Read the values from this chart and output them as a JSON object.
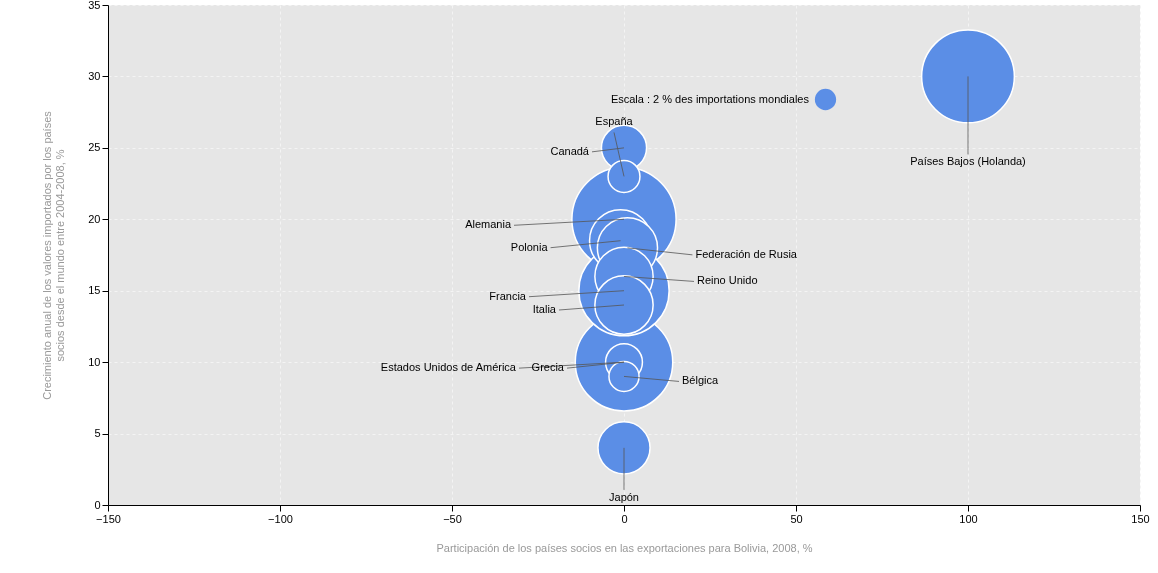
{
  "chart_data": {
    "type": "bubble",
    "xlabel": "Participación de los países socios en las exportaciones para Bolivia, 2008, %",
    "ylabel": "Crecimiento anual de los valores importados por los países\nsocios desde el mundo entre 2004-2008, %",
    "xlim": [
      -150,
      150
    ],
    "xticks": [
      -150,
      -100,
      -50,
      0,
      50,
      100,
      150
    ],
    "ylim": [
      0,
      35
    ],
    "yticks": [
      0,
      5,
      10,
      15,
      20,
      25,
      30,
      35
    ],
    "grid": true,
    "size_legend": [
      {
        "value": 2,
        "label": "Escala : 2 % des importations mondiales"
      }
    ],
    "series": [
      {
        "type": "bubble",
        "color": "#5b8ee6",
        "x": [
          0,
          0,
          100,
          0,
          -1,
          1,
          0,
          0,
          0,
          0,
          0,
          0,
          0
        ],
        "values": [
          20,
          10,
          30,
          15,
          18.5,
          18,
          16,
          14,
          4,
          25,
          10,
          23,
          9
        ],
        "sizes": [
          48,
          42,
          38,
          36,
          17,
          16,
          15,
          15,
          12,
          9,
          6,
          4.5,
          4
        ]
      }
    ],
    "annotations": [
      {
        "text": "Alemania",
        "x": 0,
        "y": 20
      },
      {
        "text": "Estados Unidos de América",
        "x": 0,
        "y": 10
      },
      {
        "text": "Países Bajos (Holanda)",
        "x": 100,
        "y": 30
      },
      {
        "text": "Francia",
        "x": 0,
        "y": 15
      },
      {
        "text": "Polonia",
        "x": -1,
        "y": 18.5
      },
      {
        "text": "Federación de Rusia",
        "x": 1,
        "y": 18
      },
      {
        "text": "Reino Unido",
        "x": 0,
        "y": 16
      },
      {
        "text": "Italia",
        "x": 0,
        "y": 14
      },
      {
        "text": "Japón",
        "x": 0,
        "y": 4
      },
      {
        "text": "Canadá",
        "x": 0,
        "y": 25
      },
      {
        "text": "Grecia",
        "x": 0,
        "y": 10
      },
      {
        "text": "España",
        "x": 0,
        "y": 23
      },
      {
        "text": "Bélgica",
        "x": 0,
        "y": 9
      }
    ]
  }
}
